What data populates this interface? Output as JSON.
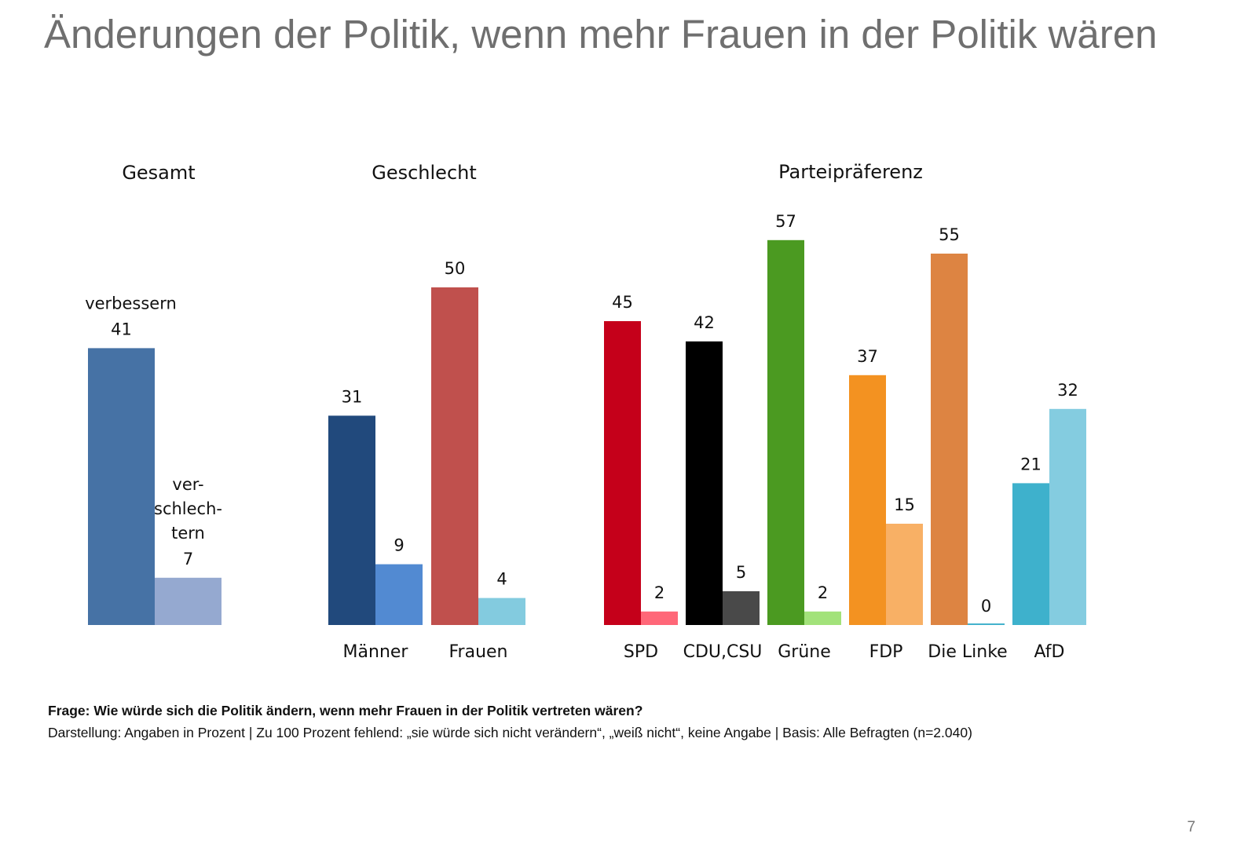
{
  "title": "Änderungen der Politik, wenn mehr Frauen in der Politik wären",
  "chart_data": {
    "type": "bar",
    "title": "Änderungen der Politik, wenn mehr Frauen in der Politik wären",
    "xlabel": "",
    "ylabel": "",
    "unit": "Prozent",
    "ylim": [
      0,
      60
    ],
    "grid": false,
    "legend": "none",
    "series_names": [
      "verbessern",
      "verschlechtern"
    ],
    "groups": [
      {
        "heading": "Gesamt",
        "categories": [
          {
            "label": "",
            "values": [
              41,
              7
            ],
            "colors": [
              "#4672A5",
              "#95A9D0"
            ],
            "series_labels": [
              "verbessern",
              "ver-\nschlech-\ntern"
            ]
          }
        ]
      },
      {
        "heading": "Geschlecht",
        "categories": [
          {
            "label": "Männer",
            "values": [
              31,
              9
            ],
            "colors": [
              "#21497C",
              "#528AD2"
            ]
          },
          {
            "label": "Frauen",
            "values": [
              50,
              4
            ],
            "colors": [
              "#C0504D",
              "#83CBDF"
            ]
          }
        ]
      },
      {
        "heading": "Parteipräferenz",
        "categories": [
          {
            "label": "SPD",
            "values": [
              45,
              2
            ],
            "colors": [
              "#C5001A",
              "#FF6778"
            ]
          },
          {
            "label": "CDU,CSU",
            "values": [
              42,
              5
            ],
            "colors": [
              "#000000",
              "#494949"
            ]
          },
          {
            "label": "Grüne",
            "values": [
              57,
              2
            ],
            "colors": [
              "#4B9A21",
              "#A2E27A"
            ]
          },
          {
            "label": "FDP",
            "values": [
              37,
              15
            ],
            "colors": [
              "#F39221",
              "#F8B065"
            ]
          },
          {
            "label": "Die Linke",
            "values": [
              55,
              0
            ],
            "colors": [
              "#DD8442",
              "#44B2CC"
            ]
          },
          {
            "label": "AfD",
            "values": [
              21,
              32
            ],
            "colors": [
              "#3EB1CC",
              "#84CCE0"
            ]
          }
        ]
      }
    ]
  },
  "footnote": {
    "question": "Frage: Wie würde sich die Politik ändern, wenn mehr Frauen in der Politik vertreten wären?",
    "details": "Darstellung: Angaben in Prozent | Zu 100 Prozent fehlend: „sie würde sich nicht verändern“, „weiß nicht“, keine Angabe | Basis: Alle Befragten (n=2.040)"
  },
  "page_number": "7"
}
